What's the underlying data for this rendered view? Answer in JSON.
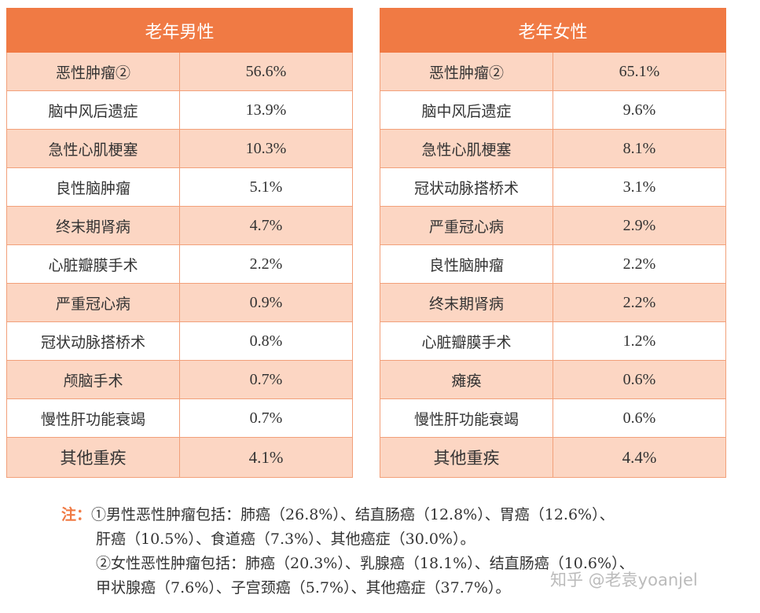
{
  "male": {
    "header": "老年男性",
    "rows": [
      {
        "name": "恶性肿瘤②",
        "value": "56.6%"
      },
      {
        "name": "脑中风后遗症",
        "value": "13.9%"
      },
      {
        "name": "急性心肌梗塞",
        "value": "10.3%"
      },
      {
        "name": "良性脑肿瘤",
        "value": "5.1%"
      },
      {
        "name": "终末期肾病",
        "value": "4.7%"
      },
      {
        "name": "心脏瓣膜手术",
        "value": "2.2%"
      },
      {
        "name": "严重冠心病",
        "value": "0.9%"
      },
      {
        "name": "冠状动脉搭桥术",
        "value": "0.8%"
      },
      {
        "name": "颅脑手术",
        "value": "0.7%"
      },
      {
        "name": "慢性肝功能衰竭",
        "value": "0.7%"
      },
      {
        "name": "其他重疾",
        "value": "4.1%"
      }
    ]
  },
  "female": {
    "header": "老年女性",
    "rows": [
      {
        "name": "恶性肿瘤②",
        "value": "65.1%"
      },
      {
        "name": "脑中风后遗症",
        "value": "9.6%"
      },
      {
        "name": "急性心肌梗塞",
        "value": "8.1%"
      },
      {
        "name": "冠状动脉搭桥术",
        "value": "3.1%"
      },
      {
        "name": "严重冠心病",
        "value": "2.9%"
      },
      {
        "name": "良性脑肿瘤",
        "value": "2.2%"
      },
      {
        "name": "终末期肾病",
        "value": "2.2%"
      },
      {
        "name": "心脏瓣膜手术",
        "value": "1.2%"
      },
      {
        "name": "瘫痪",
        "value": "0.6%"
      },
      {
        "name": "慢性肝功能衰竭",
        "value": "0.6%"
      },
      {
        "name": "其他重疾",
        "value": "4.4%"
      }
    ]
  },
  "notes": {
    "label": "注：",
    "line1": "①男性恶性肿瘤包括：肺癌（26.8%）、结直肠癌（12.8%）、胃癌（12.6%）、",
    "line2": "肝癌（10.5%）、食道癌（7.3%）、其他癌症（30.0%）。",
    "line3": "②女性恶性肿瘤包括：肺癌（20.3%）、乳腺癌（18.1%）、结直肠癌（10.6%）、",
    "line4": "甲状腺癌（7.6%）、子宫颈癌（5.7%）、其他癌症（37.7%）。"
  },
  "watermark": "知乎 @老袁yoanjel",
  "colors": {
    "accent": "#f07a44",
    "row_shade": "#fcd6c3",
    "border": "#f2a07a"
  }
}
